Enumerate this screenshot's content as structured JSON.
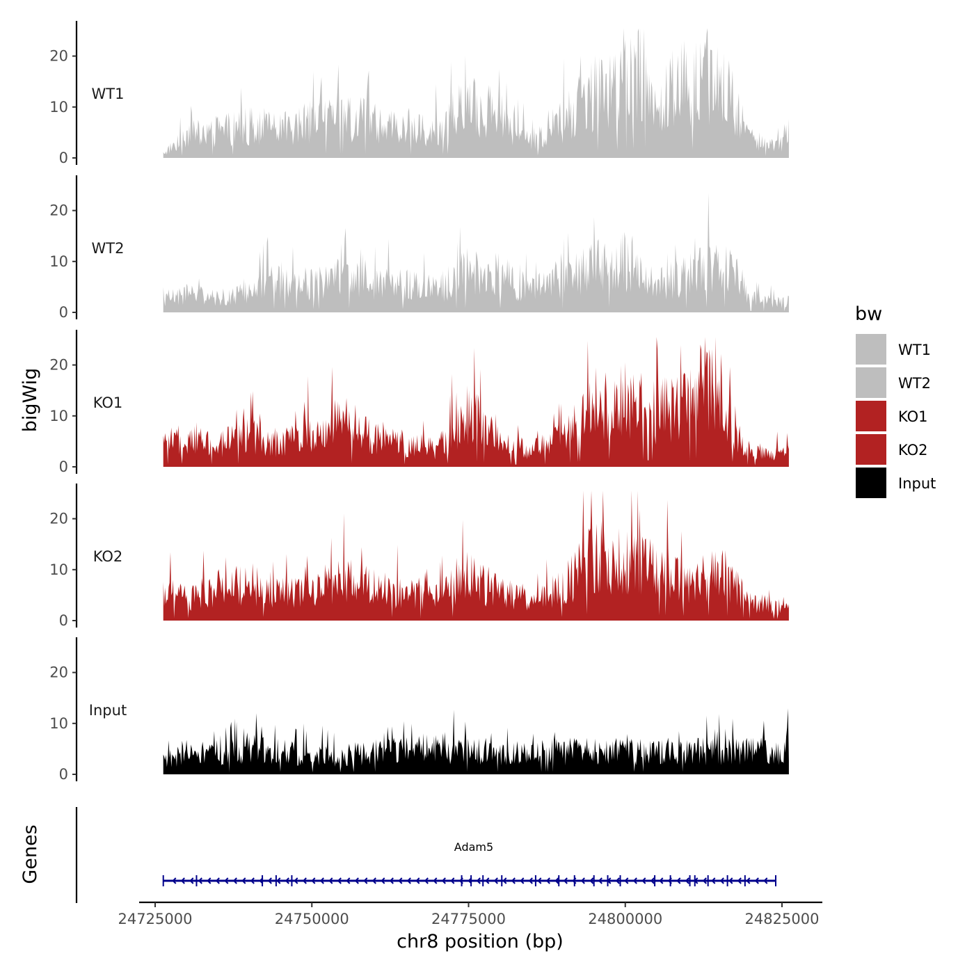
{
  "chart_data": {
    "type": "area",
    "chromosome": "chr8",
    "x_range": [
      24726300,
      24826100
    ],
    "y_range": [
      0,
      26
    ],
    "x_ticks": [
      24725000,
      24750000,
      24775000,
      24800000,
      24825000
    ],
    "y_ticks": [
      0,
      10,
      20
    ],
    "xlabel": "chr8 position (bp)",
    "ylabel": "bigWig",
    "genes_label": "Genes",
    "legend": {
      "title": "bw",
      "placement": "right",
      "entries": [
        {
          "name": "WT1",
          "color": "#bebebe"
        },
        {
          "name": "WT2",
          "color": "#bebebe"
        },
        {
          "name": "KO1",
          "color": "#b22222"
        },
        {
          "name": "KO2",
          "color": "#b22222"
        },
        {
          "name": "Input",
          "color": "#000000"
        }
      ]
    },
    "series": [
      {
        "name": "WT1",
        "color": "#bebebe",
        "x": [
          24726300,
          24730000,
          24735000,
          24740000,
          24745000,
          24750000,
          24755000,
          24760000,
          24765000,
          24770000,
          24775000,
          24780000,
          24783000,
          24785000,
          24790000,
          24795000,
          24800000,
          24803000,
          24805000,
          24810000,
          24815000,
          24820000,
          24825000,
          24826100
        ],
        "values": [
          1,
          5,
          6,
          7,
          6,
          8,
          9,
          8,
          7,
          6,
          12,
          10,
          5,
          4,
          8,
          14,
          16,
          20,
          13,
          17,
          18,
          4,
          3,
          6
        ]
      },
      {
        "name": "WT2",
        "color": "#bebebe",
        "x": [
          24726300,
          24730000,
          24735000,
          24740000,
          24745000,
          24750000,
          24755000,
          24760000,
          24765000,
          24770000,
          24775000,
          24780000,
          24785000,
          24790000,
          24795000,
          24800000,
          24805000,
          24810000,
          24815000,
          24820000,
          24825000,
          24826100
        ],
        "values": [
          3,
          4,
          3,
          5,
          7,
          6,
          8,
          7,
          6,
          5,
          9,
          8,
          5,
          7,
          10,
          11,
          6,
          8,
          12,
          3,
          2,
          3
        ]
      },
      {
        "name": "KO1",
        "color": "#b22222",
        "x": [
          24726300,
          24730000,
          24735000,
          24740000,
          24745000,
          24750000,
          24755000,
          24760000,
          24765000,
          24770000,
          24775000,
          24780000,
          24785000,
          24790000,
          24795000,
          24800000,
          24805000,
          24810000,
          24813000,
          24815000,
          24820000,
          24825000,
          24826100
        ],
        "values": [
          5,
          6,
          5,
          7,
          5,
          8,
          10,
          6,
          5,
          4,
          12,
          5,
          4,
          6,
          14,
          15,
          12,
          13,
          20,
          15,
          3,
          3,
          6
        ]
      },
      {
        "name": "KO2",
        "color": "#b22222",
        "x": [
          24726300,
          24730000,
          24735000,
          24740000,
          24745000,
          24750000,
          24755000,
          24760000,
          24765000,
          24770000,
          24775000,
          24780000,
          24785000,
          24790000,
          24795000,
          24800000,
          24805000,
          24810000,
          24815000,
          24820000,
          24825000,
          24826100
        ],
        "values": [
          6,
          5,
          7,
          8,
          6,
          7,
          9,
          7,
          6,
          5,
          10,
          6,
          5,
          7,
          14,
          13,
          11,
          9,
          11,
          4,
          3,
          4
        ]
      },
      {
        "name": "Input",
        "color": "#000000",
        "x": [
          24726300,
          24730000,
          24735000,
          24740000,
          24745000,
          24750000,
          24755000,
          24760000,
          24765000,
          24770000,
          24775000,
          24780000,
          24785000,
          24790000,
          24795000,
          24800000,
          24805000,
          24810000,
          24815000,
          24820000,
          24825000,
          24826100
        ],
        "values": [
          3,
          5,
          4,
          6,
          5,
          4,
          4,
          5,
          5,
          6,
          5,
          5,
          5,
          5,
          5,
          5,
          5,
          5,
          5,
          5,
          5,
          6
        ]
      }
    ],
    "gene": {
      "name": "Adam5",
      "start": 24726300,
      "end": 24824000,
      "strand": "-",
      "color": "#00008b",
      "exons": [
        24726300,
        24731600,
        24742100,
        24744300,
        24746800,
        24773900,
        24775400,
        24777300,
        24780300,
        24785700,
        24789400,
        24791900,
        24795000,
        24797200,
        24799200,
        24804700,
        24807200,
        24810300,
        24811100,
        24813200,
        24816300,
        24819100,
        24824000
      ]
    }
  }
}
